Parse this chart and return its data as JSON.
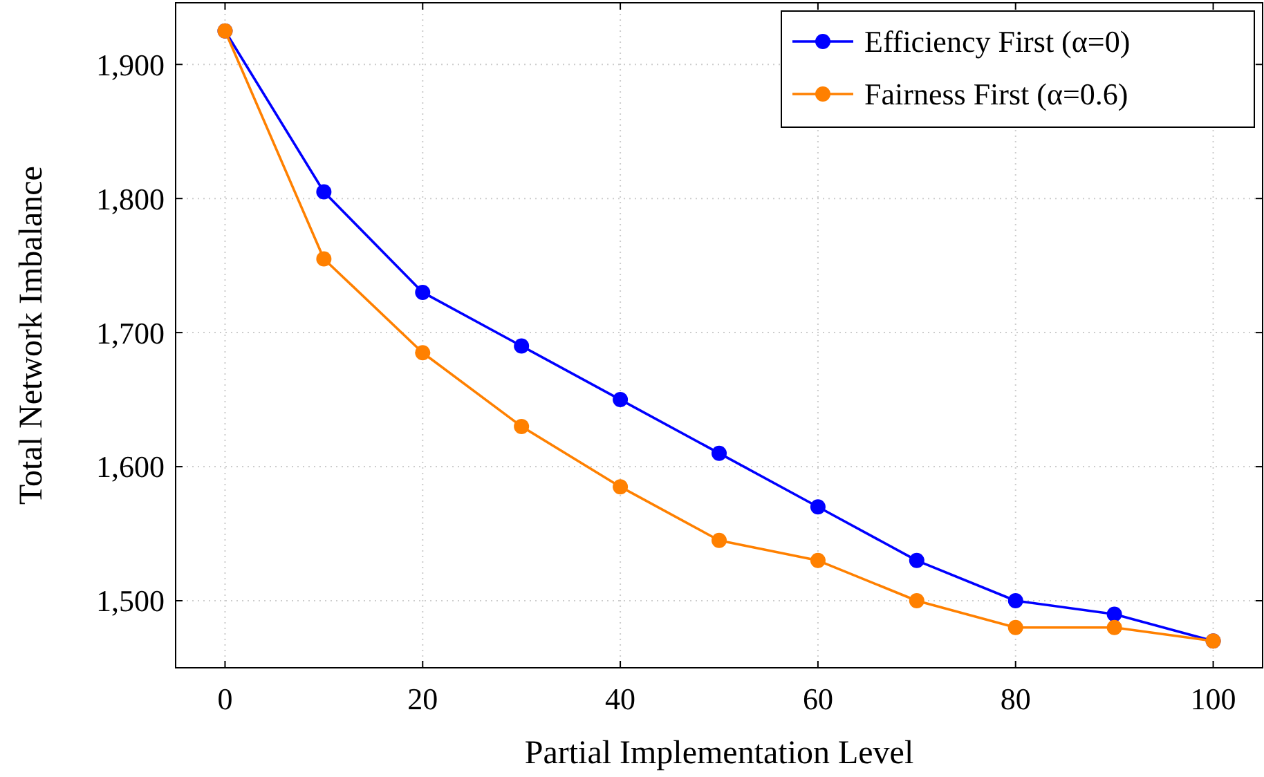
{
  "chart_data": {
    "type": "line",
    "xlabel": "Partial Implementation Level",
    "ylabel": "Total Network Imbalance",
    "x": [
      0,
      10,
      20,
      30,
      40,
      50,
      60,
      70,
      80,
      90,
      100
    ],
    "series": [
      {
        "name": "Efficiency First (α=0)",
        "color": "#0000ff",
        "values": [
          1925,
          1805,
          1730,
          1690,
          1650,
          1610,
          1570,
          1530,
          1500,
          1490,
          1470
        ]
      },
      {
        "name": "Fairness First (α=0.6)",
        "color": "#ff8000",
        "values": [
          1925,
          1755,
          1685,
          1630,
          1585,
          1545,
          1530,
          1500,
          1480,
          1480,
          1470
        ]
      }
    ],
    "xlim": [
      -5,
      105
    ],
    "xticks": [
      0,
      20,
      40,
      60,
      80,
      100
    ],
    "ylim": [
      1450,
      1946
    ],
    "yticks": [
      {
        "value": 1500,
        "label": "1,500"
      },
      {
        "value": 1600,
        "label": "1,600"
      },
      {
        "value": 1700,
        "label": "1,700"
      },
      {
        "value": 1800,
        "label": "1,800"
      },
      {
        "value": 1900,
        "label": "1,900"
      }
    ],
    "grid": true,
    "legend": "top right",
    "marker": "circle",
    "line_style": "solid"
  }
}
